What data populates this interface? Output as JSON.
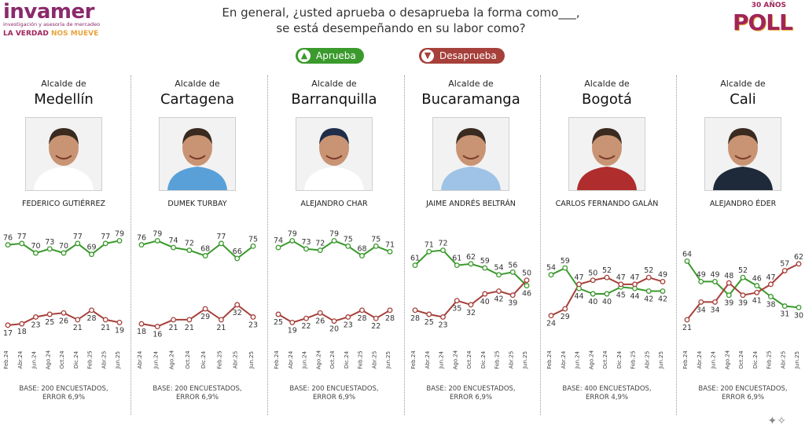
{
  "brand": {
    "name": "invamer",
    "tagline": "investigación y asesoría de mercadeo",
    "slogan_a": "LA VERDAD",
    "slogan_b": "NOS MUEVE"
  },
  "poll_logo": {
    "years": "30 AÑOS",
    "name": "POLL"
  },
  "question": {
    "line1": "En general, ¿usted aprueba o desaprueba la forma como___,",
    "line2": "se está desempeñando en su labor como?"
  },
  "legend": {
    "approve": "Aprueba",
    "disapprove": "Desaprueba",
    "approve_color": "#3a9a2c",
    "disapprove_color": "#a6403a"
  },
  "footer_deco": "✦✧",
  "chart_data": [
    {
      "type": "line",
      "role": "Alcalde de",
      "city": "Medellín",
      "person": "FEDERICO GUTIÉRREZ",
      "categories": [
        "Feb.24",
        "Abr.24",
        "Jun.24",
        "Ago.24",
        "Oct.24",
        "Dic.24",
        "Feb.25",
        "Abr.25",
        "Jun.25"
      ],
      "series": [
        {
          "name": "Aprueba",
          "values": [
            76,
            77,
            70,
            73,
            70,
            77,
            69,
            77,
            79
          ]
        },
        {
          "name": "Desaprueba",
          "values": [
            17,
            18,
            23,
            25,
            26,
            21,
            28,
            21,
            19
          ]
        }
      ],
      "ylim": [
        0,
        100
      ],
      "base_line1": "BASE: 200 ENCUESTADOS,",
      "base_line2": "ERROR 6,9%"
    },
    {
      "type": "line",
      "role": "Alcalde de",
      "city": "Cartagena",
      "person": "DUMEK TURBAY",
      "categories": [
        "Abr.24",
        "Jun.24",
        "Ago.24",
        "Oct.24",
        "Dic.24",
        "Feb.25",
        "Abr.25",
        "Jun.25"
      ],
      "series": [
        {
          "name": "Aprueba",
          "values": [
            76,
            79,
            74,
            72,
            68,
            77,
            66,
            75
          ]
        },
        {
          "name": "Desaprueba",
          "values": [
            18,
            16,
            21,
            21,
            29,
            21,
            32,
            23
          ]
        }
      ],
      "ylim": [
        0,
        100
      ],
      "base_line1": "BASE: 200 ENCUESTADOS,",
      "base_line2": "ERROR 6,9%"
    },
    {
      "type": "line",
      "role": "Alcalde de",
      "city": "Barranquilla",
      "person": "ALEJANDRO CHAR",
      "categories": [
        "Feb.24",
        "Abr.24",
        "Jun.24",
        "Ago.24",
        "Oct.24",
        "Dic.24",
        "Feb.25",
        "Abr.25",
        "Jun.25"
      ],
      "series": [
        {
          "name": "Aprueba",
          "values": [
            74,
            79,
            73,
            72,
            79,
            75,
            68,
            75,
            71
          ]
        },
        {
          "name": "Desaprueba",
          "values": [
            25,
            19,
            22,
            26,
            20,
            23,
            28,
            22,
            28
          ]
        }
      ],
      "ylim": [
        0,
        100
      ],
      "base_line1": "BASE: 200 ENCUESTADOS,",
      "base_line2": "ERROR 6,9%"
    },
    {
      "type": "line",
      "role": "Alcalde de",
      "city": "Bucaramanga",
      "person": "JAIME ANDRÉS BELTRÁN",
      "categories": [
        "Feb.24",
        "Abr.24",
        "Jun.24",
        "Ago.24",
        "Oct.24",
        "Dic.24",
        "Feb.25",
        "Abr.25",
        "Jun.25"
      ],
      "series": [
        {
          "name": "Aprueba",
          "values": [
            61,
            71,
            72,
            61,
            62,
            59,
            54,
            56,
            46
          ]
        },
        {
          "name": "Desaprueba",
          "values": [
            28,
            25,
            23,
            35,
            32,
            40,
            42,
            39,
            50
          ]
        }
      ],
      "ylim": [
        0,
        100
      ],
      "base_line1": "BASE: 200 ENCUESTADOS,",
      "base_line2": "ERROR 6,9%"
    },
    {
      "type": "line",
      "role": "Alcalde de",
      "city": "Bogotá",
      "person": "CARLOS FERNANDO GALÁN",
      "categories": [
        "Feb.24",
        "Abr.24",
        "Jun.24",
        "Ago.24",
        "Oct.24",
        "Dic.24",
        "Feb.25",
        "Abr.25",
        "Jun.25"
      ],
      "series": [
        {
          "name": "Aprueba",
          "values": [
            54,
            59,
            44,
            40,
            40,
            45,
            44,
            42,
            42
          ]
        },
        {
          "name": "Desaprueba",
          "values": [
            24,
            29,
            47,
            50,
            52,
            47,
            47,
            52,
            49
          ]
        }
      ],
      "ylim": [
        0,
        100
      ],
      "base_line1": "BASE: 400 ENCUESTADOS,",
      "base_line2": "ERROR 4,9%"
    },
    {
      "type": "line",
      "role": "Alcalde de",
      "city": "Cali",
      "person": "ALEJANDRO ÉDER",
      "categories": [
        "Feb.24",
        "Abr.24",
        "Jun.24",
        "Ago.24",
        "Oct.24",
        "Dic.24",
        "Feb.25",
        "Abr.25",
        "Jun.25"
      ],
      "series": [
        {
          "name": "Aprueba",
          "values": [
            64,
            49,
            49,
            39,
            52,
            46,
            38,
            31,
            30
          ]
        },
        {
          "name": "Desaprueba",
          "values": [
            21,
            34,
            34,
            48,
            39,
            41,
            47,
            57,
            62
          ]
        }
      ],
      "ylim": [
        0,
        100
      ],
      "base_line1": "BASE: 200 ENCUESTADOS,",
      "base_line2": "ERROR 6,9%"
    }
  ]
}
